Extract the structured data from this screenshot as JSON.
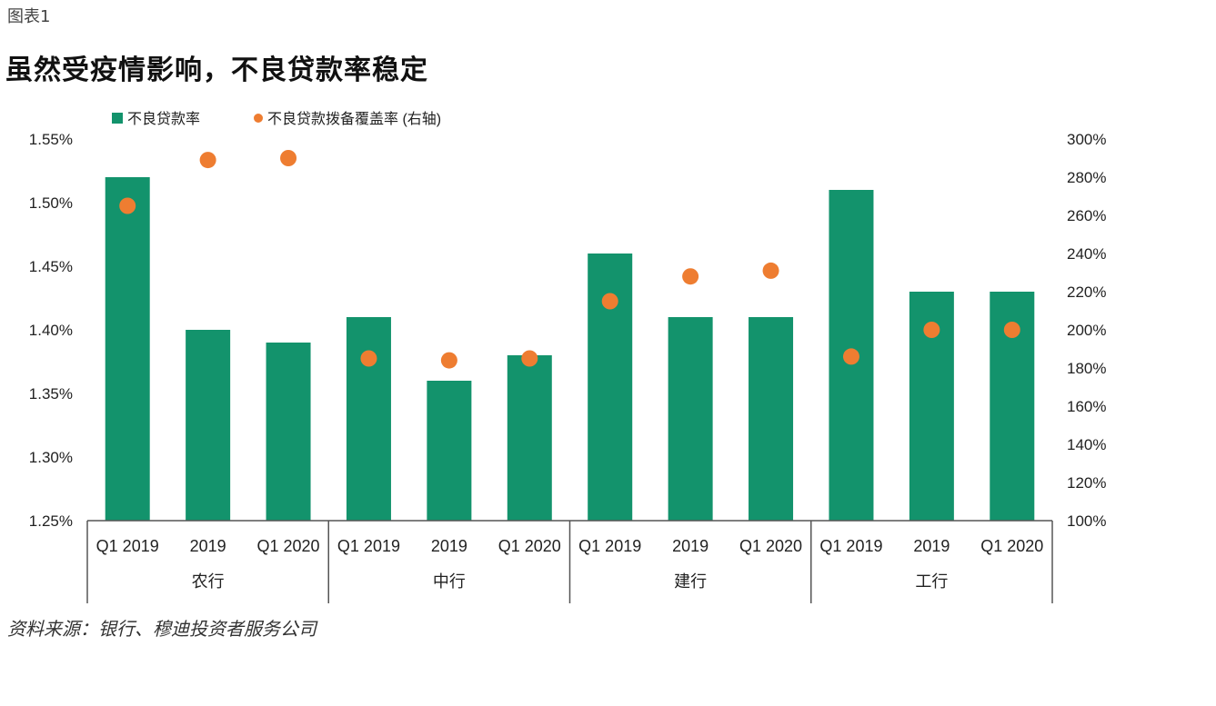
{
  "header": {
    "figure_label": "图表1",
    "title": "虽然受疫情影响，不良贷款率稳定"
  },
  "footer": {
    "source": "资料来源：银行、穆迪投资者服务公司"
  },
  "colors": {
    "bar": "#13936C",
    "dot": "#EE7D31",
    "axis": "#555555"
  },
  "chart_data": {
    "type": "bar",
    "categories": [
      "Q1 2019",
      "2019",
      "Q1 2020",
      "Q1 2019",
      "2019",
      "Q1 2020",
      "Q1 2019",
      "2019",
      "Q1 2020",
      "Q1 2019",
      "2019",
      "Q1 2020"
    ],
    "groups": [
      {
        "label": "农行",
        "span": 3
      },
      {
        "label": "中行",
        "span": 3
      },
      {
        "label": "建行",
        "span": 3
      },
      {
        "label": "工行",
        "span": 3
      }
    ],
    "series": [
      {
        "name": "不良贷款率",
        "type": "bar",
        "axis": "left",
        "values": [
          1.52,
          1.4,
          1.39,
          1.41,
          1.36,
          1.38,
          1.46,
          1.41,
          1.41,
          1.51,
          1.43,
          1.43
        ]
      },
      {
        "name": "不良贷款拨备覆盖率 (右轴)",
        "type": "scatter",
        "axis": "right",
        "values": [
          265,
          289,
          290,
          185,
          184,
          185,
          215,
          228,
          231,
          186,
          200,
          200
        ]
      }
    ],
    "y_left": {
      "min": 1.25,
      "max": 1.55,
      "step": 0.05,
      "ticks": [
        "1.25%",
        "1.30%",
        "1.35%",
        "1.40%",
        "1.45%",
        "1.50%",
        "1.55%"
      ]
    },
    "y_right": {
      "min": 100,
      "max": 300,
      "step": 20,
      "ticks": [
        "100%",
        "120%",
        "140%",
        "160%",
        "180%",
        "200%",
        "220%",
        "240%",
        "260%",
        "280%",
        "300%"
      ]
    },
    "legend_position": "top-left",
    "grid": false
  }
}
